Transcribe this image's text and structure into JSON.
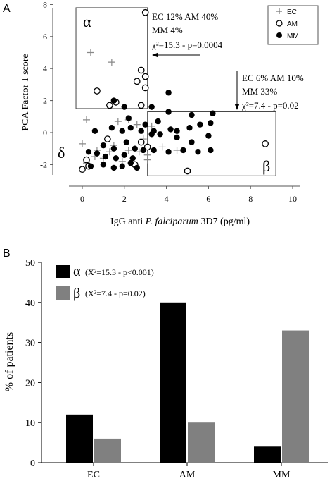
{
  "chart_data": [
    {
      "panel_label": "A",
      "type": "scatter",
      "xlabel_prefix": "IgG anti ",
      "xlabel_italic": "P. falciparum",
      "xlabel_suffix": " 3D7 (pg/ml)",
      "ylabel": "PCA Factor 1 score",
      "xlim": [
        -1,
        10
      ],
      "ylim": [
        -3,
        8
      ],
      "xticks": [
        "0",
        "2",
        "4",
        "6",
        "8",
        "10"
      ],
      "yticks": [
        "-2",
        "0",
        "2",
        "4",
        "6",
        "8"
      ],
      "legend": [
        "EC",
        "AM",
        "MM"
      ],
      "legend_position": "top-right",
      "region_labels": {
        "alpha": "α",
        "beta": "β",
        "delta": "δ"
      },
      "annotation_alpha": [
        "EC 12% AM 40%",
        "MM 4%",
        "χ²=15.3 - p=0.0004"
      ],
      "annotation_beta": [
        "EC 6% AM 10%",
        "MM 33%",
        "χ²=7.4 - p=0.02"
      ],
      "series": [
        {
          "name": "EC",
          "marker": "plus",
          "points": [
            [
              0.4,
              5
            ],
            [
              1.4,
              4.4
            ],
            [
              0.2,
              0.8
            ],
            [
              0,
              -0.7
            ],
            [
              0.2,
              -1.9
            ],
            [
              0.7,
              -1.1
            ],
            [
              1,
              -1.6
            ],
            [
              1.3,
              -1.2
            ],
            [
              1.7,
              0.7
            ],
            [
              2.2,
              0.8
            ],
            [
              2.6,
              0.5
            ],
            [
              2.2,
              -1.1
            ],
            [
              2.9,
              -0.4
            ],
            [
              3.3,
              0.4
            ],
            [
              3.8,
              -0.9
            ],
            [
              2.7,
              -1.2
            ],
            [
              1.9,
              -1.8
            ],
            [
              3.1,
              -1.4
            ],
            [
              0.6,
              -1.5
            ],
            [
              1.5,
              -0.8
            ],
            [
              4.5,
              -1.1
            ],
            [
              3.1,
              -1.7
            ]
          ]
        },
        {
          "name": "AM",
          "marker": "circle-open",
          "points": [
            [
              3.0,
              7.5
            ],
            [
              2.6,
              3.2
            ],
            [
              2.8,
              3.9
            ],
            [
              3,
              3.5
            ],
            [
              3,
              2.8
            ],
            [
              0.7,
              2.6
            ],
            [
              1.3,
              1.7
            ],
            [
              1.6,
              1.9
            ],
            [
              2.8,
              1.7
            ],
            [
              1.2,
              -0.4
            ],
            [
              0.2,
              -1.7
            ],
            [
              0,
              -2.3
            ],
            [
              0.3,
              -2.1
            ],
            [
              2.5,
              -2
            ],
            [
              2.8,
              -0.6
            ],
            [
              3.1,
              -0.9
            ],
            [
              5,
              -2.4
            ],
            [
              8.7,
              -0.7
            ]
          ]
        },
        {
          "name": "MM",
          "marker": "circle-filled",
          "points": [
            [
              1.5,
              2
            ],
            [
              2,
              1.6
            ],
            [
              3.3,
              1.6
            ],
            [
              4.1,
              2.5
            ],
            [
              3.6,
              0.7
            ],
            [
              4.1,
              1.3
            ],
            [
              5.2,
              1.1
            ],
            [
              6.2,
              1.2
            ],
            [
              2.2,
              0.9
            ],
            [
              3,
              0.5
            ],
            [
              3.4,
              0.1
            ],
            [
              4.2,
              0.2
            ],
            [
              4.5,
              0.1
            ],
            [
              5.1,
              0.3
            ],
            [
              5.6,
              0.5
            ],
            [
              6,
              -0.2
            ],
            [
              6.1,
              0.6
            ],
            [
              0.6,
              0.1
            ],
            [
              1.4,
              0.3
            ],
            [
              1.9,
              0.1
            ],
            [
              2.3,
              0.3
            ],
            [
              2.8,
              0.1
            ],
            [
              3.3,
              -0.1
            ],
            [
              3.7,
              -0.1
            ],
            [
              4.5,
              -0.3
            ],
            [
              5.2,
              -0.6
            ],
            [
              6.1,
              -1.1
            ],
            [
              1,
              -0.8
            ],
            [
              1.5,
              -1
            ],
            [
              2.1,
              -0.6
            ],
            [
              2.5,
              -1
            ],
            [
              2.9,
              -1.1
            ],
            [
              3.4,
              -1.1
            ],
            [
              4.1,
              -1.2
            ],
            [
              4.8,
              -1.1
            ],
            [
              5.5,
              -1.2
            ],
            [
              0.3,
              -1.2
            ],
            [
              0.7,
              -1.3
            ],
            [
              1.1,
              -1.5
            ],
            [
              1.6,
              -1.6
            ],
            [
              2,
              -1.4
            ],
            [
              2.4,
              -1.6
            ],
            [
              0.4,
              -2.1
            ],
            [
              1,
              -2
            ],
            [
              1.5,
              -2.2
            ],
            [
              1.9,
              -2.1
            ],
            [
              2.3,
              -1.9
            ],
            [
              2.6,
              -2.2
            ]
          ]
        }
      ],
      "regions": [
        {
          "name": "alpha",
          "x_range": [
            -0.3,
            3.1
          ],
          "y_range": [
            1.5,
            7.8
          ]
        },
        {
          "name": "beta",
          "x_range": [
            3.1,
            9.2
          ],
          "y_range": [
            -2.7,
            1.3
          ]
        }
      ]
    },
    {
      "panel_label": "B",
      "type": "bar",
      "ylabel": "% of patients",
      "ylim": [
        0,
        50
      ],
      "yticks": [
        "0",
        "10",
        "20",
        "30",
        "40",
        "50"
      ],
      "categories": [
        "EC",
        "AM",
        "MM"
      ],
      "legend_position": "top-left",
      "series": [
        {
          "name": "α",
          "legend_note": "(X²=15.3 - p<0.001)",
          "color": "#000000",
          "values": [
            12,
            40,
            4
          ]
        },
        {
          "name": "β",
          "legend_note": "(X²=7.4 - p=0.02)",
          "color": "#808080",
          "values": [
            6,
            10,
            33
          ]
        }
      ]
    }
  ]
}
